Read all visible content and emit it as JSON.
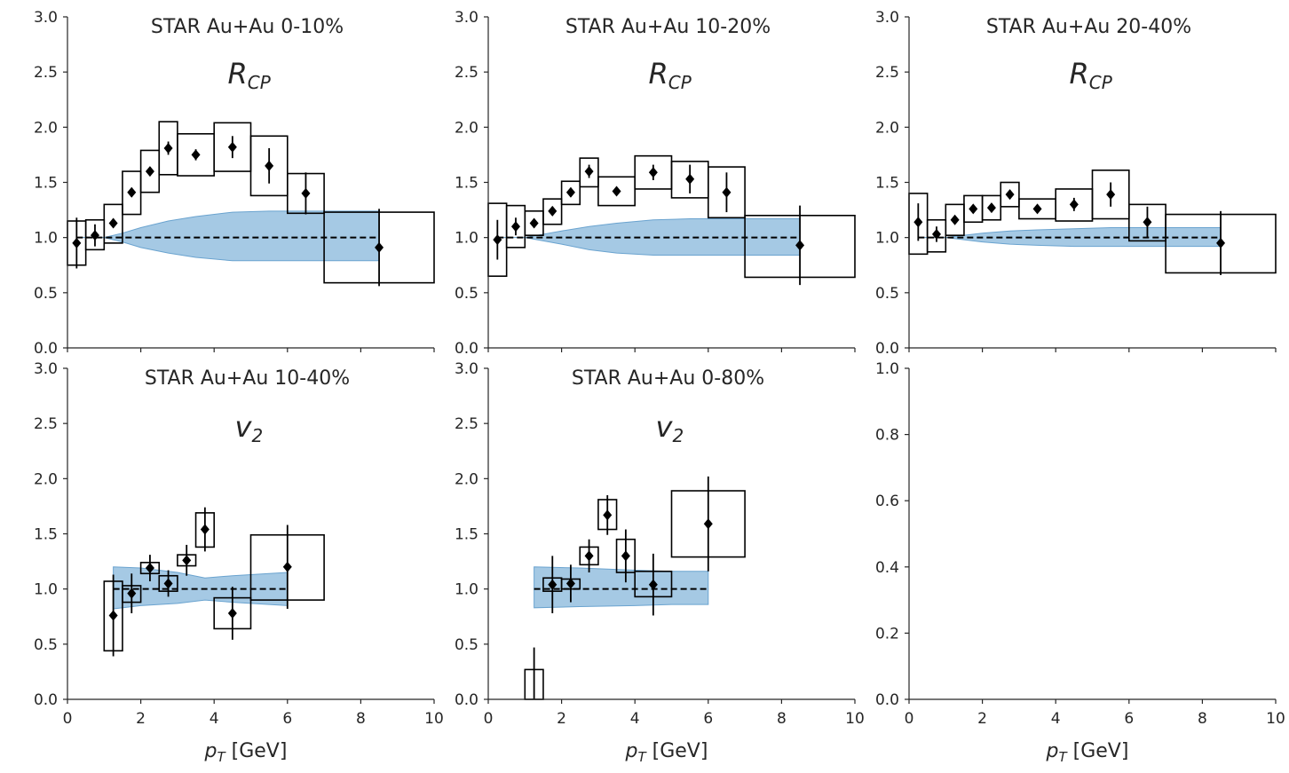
{
  "figure": {
    "band_color": "#7fb2d9",
    "band_edge_color": "#6aa3cf",
    "marker_color": "#000000",
    "axis_color": "#262626"
  },
  "chart_data": [
    {
      "type": "scatter",
      "panel": "top-left",
      "title": "STAR Au+Au 0-10%",
      "observable": "R",
      "observable_sub": "CP",
      "xlabel": "",
      "xlim": [
        0,
        10
      ],
      "ylim": [
        0,
        3
      ],
      "xticks": [],
      "yticks": [
        "0.0",
        "0.5",
        "1.0",
        "1.5",
        "2.0",
        "2.5",
        "3.0"
      ],
      "reference_line": 1.0,
      "points": [
        {
          "x": 0.25,
          "y": 0.95,
          "yerr": 0.23,
          "sys_x": [
            0,
            0.5
          ],
          "sys_y": [
            0.75,
            1.15
          ]
        },
        {
          "x": 0.75,
          "y": 1.02,
          "yerr": 0.1,
          "sys_x": [
            0.5,
            1.0
          ],
          "sys_y": [
            0.89,
            1.16
          ]
        },
        {
          "x": 1.25,
          "y": 1.13,
          "yerr": 0.04,
          "sys_x": [
            1.0,
            1.5
          ],
          "sys_y": [
            0.95,
            1.3
          ]
        },
        {
          "x": 1.75,
          "y": 1.41,
          "yerr": 0.04,
          "sys_x": [
            1.5,
            2.0
          ],
          "sys_y": [
            1.21,
            1.6
          ]
        },
        {
          "x": 2.25,
          "y": 1.6,
          "yerr": 0.04,
          "sys_x": [
            2.0,
            2.5
          ],
          "sys_y": [
            1.41,
            1.79
          ]
        },
        {
          "x": 2.75,
          "y": 1.81,
          "yerr": 0.06,
          "sys_x": [
            2.5,
            3.0
          ],
          "sys_y": [
            1.57,
            2.05
          ]
        },
        {
          "x": 3.5,
          "y": 1.75,
          "yerr": 0.05,
          "sys_x": [
            3.0,
            4.0
          ],
          "sys_y": [
            1.56,
            1.94
          ]
        },
        {
          "x": 4.5,
          "y": 1.82,
          "yerr": 0.1,
          "sys_x": [
            4.0,
            5.0
          ],
          "sys_y": [
            1.6,
            2.04
          ]
        },
        {
          "x": 5.5,
          "y": 1.65,
          "yerr": 0.16,
          "sys_x": [
            5.0,
            6.0
          ],
          "sys_y": [
            1.38,
            1.92
          ]
        },
        {
          "x": 6.5,
          "y": 1.4,
          "yerr": 0.19,
          "sys_x": [
            6.0,
            7.0
          ],
          "sys_y": [
            1.22,
            1.58
          ]
        },
        {
          "x": 8.5,
          "y": 0.91,
          "yerr": 0.35,
          "sys_x": [
            7.0,
            10.0
          ],
          "sys_y": [
            0.59,
            1.23
          ]
        }
      ],
      "band": {
        "x": [
          0.25,
          1.0,
          1.5,
          2.0,
          2.75,
          3.5,
          4.5,
          5.5,
          6.5,
          7.5,
          8.5
        ],
        "upper": [
          1.0,
          1.0,
          1.04,
          1.09,
          1.15,
          1.19,
          1.23,
          1.24,
          1.24,
          1.24,
          1.24
        ],
        "lower": [
          1.0,
          1.0,
          0.96,
          0.91,
          0.86,
          0.82,
          0.79,
          0.79,
          0.79,
          0.79,
          0.79
        ]
      }
    },
    {
      "type": "scatter",
      "panel": "top-middle",
      "title": "STAR Au+Au 10-20%",
      "observable": "R",
      "observable_sub": "CP",
      "xlabel": "",
      "xlim": [
        0,
        10
      ],
      "ylim": [
        0,
        3
      ],
      "xticks": [],
      "yticks": [
        "0.0",
        "0.5",
        "1.0",
        "1.5",
        "2.0",
        "2.5",
        "3.0"
      ],
      "reference_line": 1.0,
      "points": [
        {
          "x": 0.25,
          "y": 0.98,
          "yerr": 0.18,
          "sys_x": [
            0,
            0.5
          ],
          "sys_y": [
            0.65,
            1.31
          ]
        },
        {
          "x": 0.75,
          "y": 1.1,
          "yerr": 0.08,
          "sys_x": [
            0.5,
            1.0
          ],
          "sys_y": [
            0.91,
            1.29
          ]
        },
        {
          "x": 1.25,
          "y": 1.13,
          "yerr": 0.04,
          "sys_x": [
            1.0,
            1.5
          ],
          "sys_y": [
            1.02,
            1.24
          ]
        },
        {
          "x": 1.75,
          "y": 1.24,
          "yerr": 0.04,
          "sys_x": [
            1.5,
            2.0
          ],
          "sys_y": [
            1.12,
            1.35
          ]
        },
        {
          "x": 2.25,
          "y": 1.41,
          "yerr": 0.04,
          "sys_x": [
            2.0,
            2.5
          ],
          "sys_y": [
            1.3,
            1.51
          ]
        },
        {
          "x": 2.75,
          "y": 1.6,
          "yerr": 0.06,
          "sys_x": [
            2.5,
            3.0
          ],
          "sys_y": [
            1.46,
            1.72
          ]
        },
        {
          "x": 3.5,
          "y": 1.42,
          "yerr": 0.04,
          "sys_x": [
            3.0,
            4.0
          ],
          "sys_y": [
            1.29,
            1.55
          ]
        },
        {
          "x": 4.5,
          "y": 1.59,
          "yerr": 0.07,
          "sys_x": [
            4.0,
            5.0
          ],
          "sys_y": [
            1.44,
            1.74
          ]
        },
        {
          "x": 5.5,
          "y": 1.53,
          "yerr": 0.13,
          "sys_x": [
            5.0,
            6.0
          ],
          "sys_y": [
            1.36,
            1.69
          ]
        },
        {
          "x": 6.5,
          "y": 1.41,
          "yerr": 0.18,
          "sys_x": [
            6.0,
            7.0
          ],
          "sys_y": [
            1.18,
            1.64
          ]
        },
        {
          "x": 8.5,
          "y": 0.93,
          "yerr": 0.36,
          "sys_x": [
            7.0,
            10.0
          ],
          "sys_y": [
            0.64,
            1.2
          ]
        }
      ],
      "band": {
        "x": [
          0.25,
          1.0,
          1.5,
          2.0,
          2.75,
          3.5,
          4.5,
          5.5,
          6.5,
          7.5,
          8.5
        ],
        "upper": [
          1.0,
          1.0,
          1.03,
          1.06,
          1.1,
          1.13,
          1.16,
          1.17,
          1.17,
          1.17,
          1.17
        ],
        "lower": [
          1.0,
          1.0,
          0.97,
          0.94,
          0.89,
          0.86,
          0.84,
          0.84,
          0.84,
          0.84,
          0.84
        ]
      }
    },
    {
      "type": "scatter",
      "panel": "top-right",
      "title": "STAR Au+Au 20-40%",
      "observable": "R",
      "observable_sub": "CP",
      "xlabel": "",
      "xlim": [
        0,
        10
      ],
      "ylim": [
        0,
        3
      ],
      "xticks": [],
      "yticks": [
        "0.0",
        "0.5",
        "1.0",
        "1.5",
        "2.0",
        "2.5",
        "3.0"
      ],
      "reference_line": 1.0,
      "points": [
        {
          "x": 0.25,
          "y": 1.14,
          "yerr": 0.17,
          "sys_x": [
            0,
            0.5
          ],
          "sys_y": [
            0.85,
            1.4
          ]
        },
        {
          "x": 0.75,
          "y": 1.03,
          "yerr": 0.07,
          "sys_x": [
            0.5,
            1.0
          ],
          "sys_y": [
            0.87,
            1.16
          ]
        },
        {
          "x": 1.25,
          "y": 1.16,
          "yerr": 0.03,
          "sys_x": [
            1.0,
            1.5
          ],
          "sys_y": [
            1.02,
            1.3
          ]
        },
        {
          "x": 1.75,
          "y": 1.26,
          "yerr": 0.03,
          "sys_x": [
            1.5,
            2.0
          ],
          "sys_y": [
            1.14,
            1.38
          ]
        },
        {
          "x": 2.25,
          "y": 1.27,
          "yerr": 0.03,
          "sys_x": [
            2.0,
            2.5
          ],
          "sys_y": [
            1.16,
            1.38
          ]
        },
        {
          "x": 2.75,
          "y": 1.39,
          "yerr": 0.04,
          "sys_x": [
            2.5,
            3.0
          ],
          "sys_y": [
            1.28,
            1.5
          ]
        },
        {
          "x": 3.5,
          "y": 1.26,
          "yerr": 0.03,
          "sys_x": [
            3.0,
            4.0
          ],
          "sys_y": [
            1.17,
            1.35
          ]
        },
        {
          "x": 4.5,
          "y": 1.3,
          "yerr": 0.06,
          "sys_x": [
            4.0,
            5.0
          ],
          "sys_y": [
            1.15,
            1.44
          ]
        },
        {
          "x": 5.5,
          "y": 1.39,
          "yerr": 0.11,
          "sys_x": [
            5.0,
            6.0
          ],
          "sys_y": [
            1.17,
            1.61
          ]
        },
        {
          "x": 6.5,
          "y": 1.14,
          "yerr": 0.14,
          "sys_x": [
            6.0,
            7.0
          ],
          "sys_y": [
            0.97,
            1.3
          ]
        },
        {
          "x": 8.5,
          "y": 0.95,
          "yerr": 0.29,
          "sys_x": [
            7.0,
            10.0
          ],
          "sys_y": [
            0.68,
            1.21
          ]
        }
      ],
      "band": {
        "x": [
          0.25,
          1.0,
          1.5,
          2.0,
          2.75,
          3.5,
          4.5,
          5.5,
          6.5,
          7.5,
          8.5
        ],
        "upper": [
          1.0,
          1.0,
          1.02,
          1.04,
          1.06,
          1.07,
          1.08,
          1.09,
          1.09,
          1.09,
          1.09
        ],
        "lower": [
          1.0,
          1.0,
          0.98,
          0.96,
          0.94,
          0.93,
          0.92,
          0.92,
          0.92,
          0.92,
          0.92
        ]
      }
    },
    {
      "type": "scatter",
      "panel": "bottom-left",
      "title": "STAR Au+Au 10-40%",
      "observable": "v",
      "observable_sub": "2",
      "xlabel": "p",
      "xlabel_sub": "T",
      "xlabel_unit": " [GeV]",
      "xlim": [
        0,
        10
      ],
      "ylim": [
        0,
        3
      ],
      "xticks": [
        "0",
        "2",
        "4",
        "6",
        "8",
        "10"
      ],
      "yticks": [
        "0.0",
        "0.5",
        "1.0",
        "1.5",
        "2.0",
        "2.5",
        "3.0"
      ],
      "reference_line": 1.0,
      "reference_range": [
        1.25,
        6.0
      ],
      "points": [
        {
          "x": 1.25,
          "y": 0.76,
          "yerr": 0.37,
          "sys_x": [
            1.0,
            1.5
          ],
          "sys_y": [
            0.44,
            1.07
          ]
        },
        {
          "x": 1.75,
          "y": 0.96,
          "yerr": 0.18,
          "sys_x": [
            1.5,
            2.0
          ],
          "sys_y": [
            0.88,
            1.03
          ]
        },
        {
          "x": 2.25,
          "y": 1.19,
          "yerr": 0.12,
          "sys_x": [
            2.0,
            2.5
          ],
          "sys_y": [
            1.14,
            1.24
          ]
        },
        {
          "x": 2.75,
          "y": 1.05,
          "yerr": 0.12,
          "sys_x": [
            2.5,
            3.0
          ],
          "sys_y": [
            0.98,
            1.12
          ]
        },
        {
          "x": 3.25,
          "y": 1.26,
          "yerr": 0.14,
          "sys_x": [
            3.0,
            3.5
          ],
          "sys_y": [
            1.21,
            1.31
          ]
        },
        {
          "x": 3.75,
          "y": 1.54,
          "yerr": 0.2,
          "sys_x": [
            3.5,
            4.0
          ],
          "sys_y": [
            1.38,
            1.69
          ]
        },
        {
          "x": 4.5,
          "y": 0.78,
          "yerr": 0.24,
          "sys_x": [
            4.0,
            5.0
          ],
          "sys_y": [
            0.64,
            0.92
          ]
        },
        {
          "x": 6.0,
          "y": 1.2,
          "yerr": 0.38,
          "sys_x": [
            5.0,
            7.0
          ],
          "sys_y": [
            0.9,
            1.49
          ]
        }
      ],
      "band": {
        "x": [
          1.25,
          2.0,
          3.0,
          3.75,
          4.5,
          5.5,
          6.0
        ],
        "upper": [
          1.2,
          1.19,
          1.15,
          1.1,
          1.12,
          1.14,
          1.15
        ],
        "lower": [
          0.82,
          0.85,
          0.87,
          0.9,
          0.88,
          0.86,
          0.85
        ]
      }
    },
    {
      "type": "scatter",
      "panel": "bottom-middle",
      "title": "STAR Au+Au 0-80%",
      "observable": "v",
      "observable_sub": "2",
      "xlabel": "p",
      "xlabel_sub": "T",
      "xlabel_unit": " [GeV]",
      "xlim": [
        0,
        10
      ],
      "ylim": [
        0,
        3
      ],
      "xticks": [
        "0",
        "2",
        "4",
        "6",
        "8",
        "10"
      ],
      "yticks": [
        "0.0",
        "0.5",
        "1.0",
        "1.5",
        "2.0",
        "2.5",
        "3.0"
      ],
      "reference_line": 1.0,
      "reference_range": [
        1.25,
        6.0
      ],
      "points": [
        {
          "x": 1.25,
          "y": null,
          "yerr_range": [
            0,
            0.47
          ],
          "sys_x": [
            1.0,
            1.5
          ],
          "sys_y": [
            0,
            0.27
          ]
        },
        {
          "x": 1.75,
          "y": 1.04,
          "yerr": 0.26,
          "sys_x": [
            1.5,
            2.0
          ],
          "sys_y": [
            0.98,
            1.1
          ]
        },
        {
          "x": 2.25,
          "y": 1.05,
          "yerr": 0.17,
          "sys_x": [
            2.0,
            2.5
          ],
          "sys_y": [
            1.0,
            1.09
          ]
        },
        {
          "x": 2.75,
          "y": 1.3,
          "yerr": 0.15,
          "sys_x": [
            2.5,
            3.0
          ],
          "sys_y": [
            1.22,
            1.38
          ]
        },
        {
          "x": 3.25,
          "y": 1.67,
          "yerr": 0.18,
          "sys_x": [
            3.0,
            3.5
          ],
          "sys_y": [
            1.54,
            1.81
          ]
        },
        {
          "x": 3.75,
          "y": 1.3,
          "yerr": 0.24,
          "sys_x": [
            3.5,
            4.0
          ],
          "sys_y": [
            1.15,
            1.45
          ]
        },
        {
          "x": 4.5,
          "y": 1.04,
          "yerr": 0.28,
          "sys_x": [
            4.0,
            5.0
          ],
          "sys_y": [
            0.93,
            1.16
          ]
        },
        {
          "x": 6.0,
          "y": 1.59,
          "yerr": 0.43,
          "sys_x": [
            5.0,
            7.0
          ],
          "sys_y": [
            1.29,
            1.89
          ]
        }
      ],
      "band": {
        "x": [
          1.25,
          2.5,
          4.0,
          5.0,
          6.0
        ],
        "upper": [
          1.2,
          1.19,
          1.17,
          1.16,
          1.16
        ],
        "lower": [
          0.83,
          0.84,
          0.85,
          0.86,
          0.86
        ]
      }
    },
    {
      "type": "scatter",
      "panel": "bottom-right",
      "title": "",
      "xlabel": "p",
      "xlabel_sub": "T",
      "xlabel_unit": " [GeV]",
      "xlim": [
        0,
        10
      ],
      "ylim": [
        0,
        1
      ],
      "xticks": [
        "0",
        "2",
        "4",
        "6",
        "8",
        "10"
      ],
      "yticks": [
        "0.0",
        "0.2",
        "0.4",
        "0.6",
        "0.8",
        "1.0"
      ],
      "points": [],
      "band": null
    }
  ]
}
